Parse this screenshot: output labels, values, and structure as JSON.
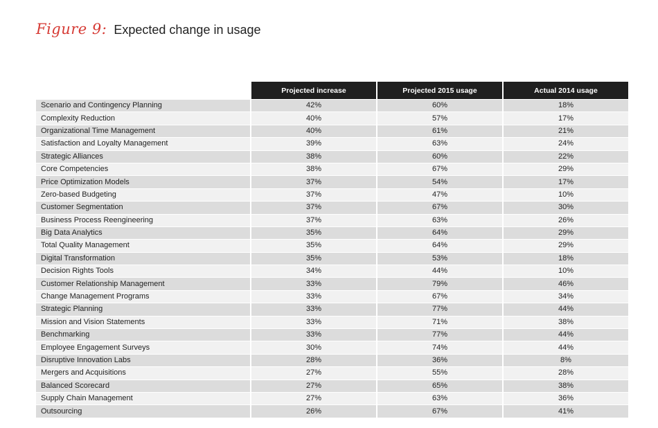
{
  "figure": {
    "label": "Figure 9:",
    "title": "Expected change in usage"
  },
  "chart_data": {
    "type": "table",
    "title": "Expected change in usage",
    "columns": [
      "Projected increase",
      "Projected 2015 usage",
      "Actual 2014 usage"
    ],
    "rows": [
      {
        "name": "Scenario and Contingency Planning",
        "values": [
          "42%",
          "60%",
          "18%"
        ]
      },
      {
        "name": "Complexity Reduction",
        "values": [
          "40%",
          "57%",
          "17%"
        ]
      },
      {
        "name": "Organizational Time Management",
        "values": [
          "40%",
          "61%",
          "21%"
        ]
      },
      {
        "name": "Satisfaction and Loyalty Management",
        "values": [
          "39%",
          "63%",
          "24%"
        ]
      },
      {
        "name": "Strategic Alliances",
        "values": [
          "38%",
          "60%",
          "22%"
        ]
      },
      {
        "name": "Core Competencies",
        "values": [
          "38%",
          "67%",
          "29%"
        ]
      },
      {
        "name": "Price Optimization Models",
        "values": [
          "37%",
          "54%",
          "17%"
        ]
      },
      {
        "name": "Zero-based Budgeting",
        "values": [
          "37%",
          "47%",
          "10%"
        ]
      },
      {
        "name": "Customer Segmentation",
        "values": [
          "37%",
          "67%",
          "30%"
        ]
      },
      {
        "name": "Business Process Reengineering",
        "values": [
          "37%",
          "63%",
          "26%"
        ]
      },
      {
        "name": "Big Data Analytics",
        "values": [
          "35%",
          "64%",
          "29%"
        ]
      },
      {
        "name": "Total Quality Management",
        "values": [
          "35%",
          "64%",
          "29%"
        ]
      },
      {
        "name": "Digital Transformation",
        "values": [
          "35%",
          "53%",
          "18%"
        ]
      },
      {
        "name": "Decision Rights Tools",
        "values": [
          "34%",
          "44%",
          "10%"
        ]
      },
      {
        "name": "Customer Relationship Management",
        "values": [
          "33%",
          "79%",
          "46%"
        ]
      },
      {
        "name": "Change Management Programs",
        "values": [
          "33%",
          "67%",
          "34%"
        ]
      },
      {
        "name": "Strategic Planning",
        "values": [
          "33%",
          "77%",
          "44%"
        ]
      },
      {
        "name": "Mission and Vision Statements",
        "values": [
          "33%",
          "71%",
          "38%"
        ]
      },
      {
        "name": "Benchmarking",
        "values": [
          "33%",
          "77%",
          "44%"
        ]
      },
      {
        "name": "Employee Engagement Surveys",
        "values": [
          "30%",
          "74%",
          "44%"
        ]
      },
      {
        "name": "Disruptive Innovation Labs",
        "values": [
          "28%",
          "36%",
          "8%"
        ]
      },
      {
        "name": "Mergers and Acquisitions",
        "values": [
          "27%",
          "55%",
          "28%"
        ]
      },
      {
        "name": "Balanced Scorecard",
        "values": [
          "27%",
          "65%",
          "38%"
        ]
      },
      {
        "name": "Supply Chain Management",
        "values": [
          "27%",
          "63%",
          "36%"
        ]
      },
      {
        "name": "Outsourcing",
        "values": [
          "26%",
          "67%",
          "41%"
        ]
      }
    ]
  },
  "colors": {
    "figure_label": "#d63a34",
    "header_bg": "#1f1f1f",
    "row_dark": "#dcdcdc",
    "row_light": "#f1f1f1"
  }
}
